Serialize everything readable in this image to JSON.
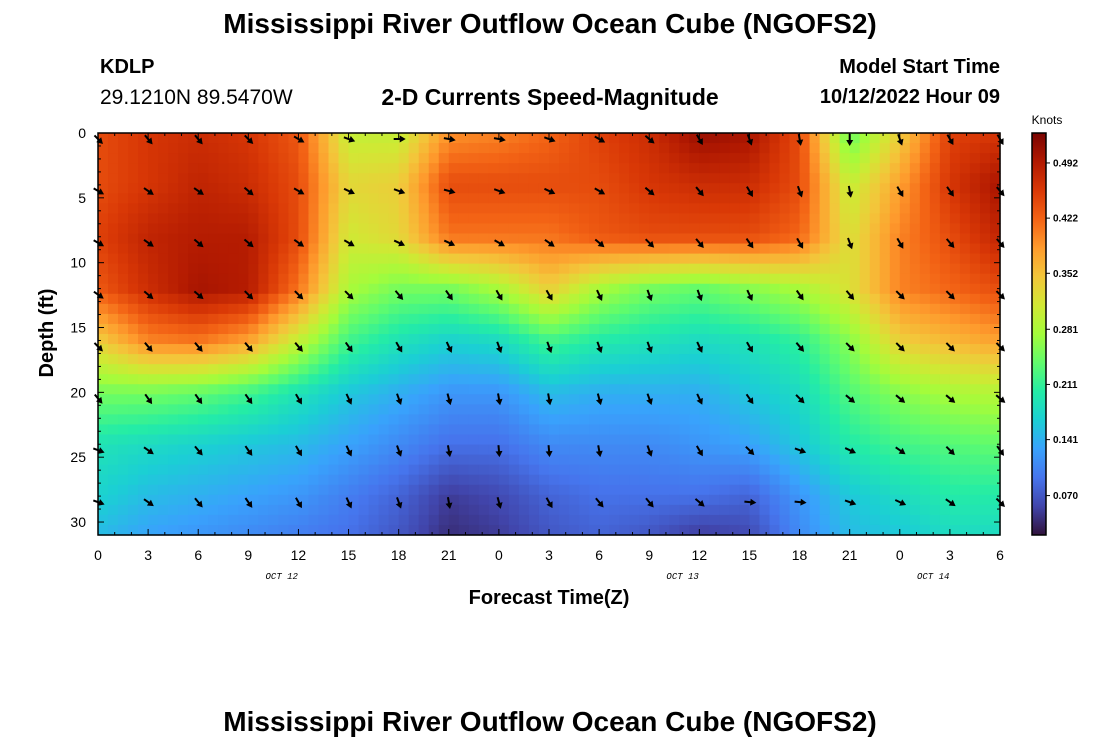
{
  "header": {
    "title": "Mississippi River Outflow Ocean Cube (NGOFS2)",
    "station_id": "KDLP",
    "station_coords": "29.1210N  89.5470W",
    "subtitle": "2-D Currents Speed-Magnitude",
    "model_start_label": "Model Start Time",
    "model_start_value": "10/12/2022 Hour 09"
  },
  "footer": {
    "title": "Mississippi River Outflow Ocean Cube (NGOFS2)"
  },
  "chart_data": {
    "type": "heatmap",
    "title": "2-D Currents Speed-Magnitude",
    "xlabel": "Forecast Time(Z)",
    "ylabel": "Depth (ft)",
    "x_tick_labels": [
      "0",
      "3",
      "6",
      "9",
      "12",
      "15",
      "18",
      "21",
      "0",
      "3",
      "6",
      "9",
      "12",
      "15",
      "18",
      "21",
      "0",
      "3",
      "6"
    ],
    "x_date_labels": [
      {
        "label": "OCT 12",
        "at_hour": 11
      },
      {
        "label": "OCT 13",
        "at_hour": 35
      },
      {
        "label": "OCT 14",
        "at_hour": 50
      }
    ],
    "x_range_hours": [
      0,
      54
    ],
    "y_tick_labels": [
      "0",
      "5",
      "10",
      "15",
      "20",
      "25",
      "30"
    ],
    "ylim": [
      31,
      0
    ],
    "y_inverted": true,
    "colorbar": {
      "unit": "Knots",
      "tick_labels": [
        "0.070",
        "0.141",
        "0.211",
        "0.281",
        "0.352",
        "0.422",
        "0.492"
      ],
      "range": [
        0.02,
        0.53
      ],
      "colors": [
        "#30123b",
        "#4145ab",
        "#4675ed",
        "#39a2fc",
        "#1bcfd4",
        "#24eca6",
        "#61fc6c",
        "#a4fc3b",
        "#d1e834",
        "#f3c63a",
        "#fe9b2d",
        "#f36315",
        "#d93806",
        "#b11901",
        "#7a0402"
      ]
    },
    "speed_hours": [
      0,
      3,
      6,
      9,
      12,
      15,
      18,
      21,
      24,
      27,
      30,
      33,
      36,
      39,
      42,
      45,
      48,
      51,
      54
    ],
    "speed_depths": [
      0,
      4,
      8,
      12,
      16,
      20,
      24,
      28,
      31
    ],
    "speed_values": [
      [
        0.44,
        0.46,
        0.47,
        0.46,
        0.43,
        0.3,
        0.3,
        0.39,
        0.4,
        0.42,
        0.45,
        0.47,
        0.51,
        0.5,
        0.44,
        0.24,
        0.34,
        0.45,
        0.46
      ],
      [
        0.44,
        0.46,
        0.48,
        0.47,
        0.44,
        0.33,
        0.34,
        0.44,
        0.44,
        0.44,
        0.44,
        0.46,
        0.47,
        0.47,
        0.44,
        0.3,
        0.38,
        0.46,
        0.5
      ],
      [
        0.45,
        0.48,
        0.49,
        0.49,
        0.44,
        0.31,
        0.33,
        0.41,
        0.41,
        0.41,
        0.43,
        0.44,
        0.44,
        0.44,
        0.42,
        0.32,
        0.4,
        0.44,
        0.48
      ],
      [
        0.43,
        0.47,
        0.5,
        0.49,
        0.41,
        0.28,
        0.25,
        0.25,
        0.28,
        0.34,
        0.28,
        0.25,
        0.24,
        0.26,
        0.28,
        0.32,
        0.4,
        0.42,
        0.44
      ],
      [
        0.34,
        0.4,
        0.41,
        0.38,
        0.3,
        0.22,
        0.19,
        0.17,
        0.18,
        0.22,
        0.2,
        0.19,
        0.18,
        0.19,
        0.21,
        0.26,
        0.34,
        0.36,
        0.38
      ],
      [
        0.25,
        0.25,
        0.24,
        0.22,
        0.19,
        0.16,
        0.14,
        0.12,
        0.12,
        0.15,
        0.14,
        0.14,
        0.14,
        0.16,
        0.18,
        0.23,
        0.26,
        0.28,
        0.29
      ],
      [
        0.19,
        0.18,
        0.17,
        0.16,
        0.15,
        0.13,
        0.11,
        0.09,
        0.09,
        0.11,
        0.11,
        0.11,
        0.12,
        0.13,
        0.16,
        0.2,
        0.22,
        0.23,
        0.24
      ],
      [
        0.17,
        0.15,
        0.14,
        0.13,
        0.12,
        0.1,
        0.08,
        0.05,
        0.06,
        0.08,
        0.09,
        0.09,
        0.09,
        0.08,
        0.12,
        0.16,
        0.18,
        0.2,
        0.2
      ],
      [
        0.15,
        0.13,
        0.12,
        0.11,
        0.1,
        0.09,
        0.07,
        0.04,
        0.05,
        0.07,
        0.08,
        0.07,
        0.05,
        0.06,
        0.11,
        0.15,
        0.16,
        0.18,
        0.18
      ]
    ],
    "arrow_hours": [
      0,
      3,
      6,
      9,
      12,
      15,
      18,
      21,
      24,
      27,
      30,
      33,
      36,
      39,
      42,
      45,
      48,
      51,
      54
    ],
    "arrow_depths": [
      0,
      4,
      8,
      12,
      16,
      20,
      24,
      28
    ],
    "arrow_direction_deg": [
      [
        135,
        140,
        140,
        135,
        120,
        110,
        90,
        100,
        100,
        110,
        120,
        130,
        150,
        160,
        170,
        180,
        160,
        150,
        150
      ],
      [
        120,
        125,
        125,
        130,
        120,
        115,
        110,
        105,
        110,
        115,
        120,
        130,
        140,
        150,
        160,
        170,
        150,
        145,
        140
      ],
      [
        120,
        125,
        130,
        130,
        125,
        120,
        115,
        115,
        120,
        125,
        130,
        135,
        140,
        145,
        150,
        160,
        150,
        140,
        140
      ],
      [
        125,
        130,
        130,
        135,
        135,
        135,
        140,
        145,
        150,
        150,
        155,
        160,
        160,
        155,
        145,
        140,
        135,
        135,
        135
      ],
      [
        135,
        140,
        140,
        140,
        140,
        145,
        150,
        155,
        160,
        160,
        160,
        160,
        155,
        150,
        140,
        135,
        135,
        135,
        135
      ],
      [
        140,
        145,
        145,
        145,
        150,
        155,
        160,
        165,
        170,
        170,
        165,
        160,
        155,
        145,
        135,
        130,
        130,
        130,
        130
      ],
      [
        110,
        125,
        140,
        145,
        150,
        155,
        160,
        170,
        175,
        175,
        170,
        160,
        150,
        135,
        110,
        115,
        125,
        135,
        145
      ],
      [
        110,
        125,
        140,
        145,
        150,
        155,
        160,
        170,
        165,
        150,
        140,
        140,
        130,
        95,
        95,
        110,
        115,
        125,
        135
      ]
    ]
  }
}
